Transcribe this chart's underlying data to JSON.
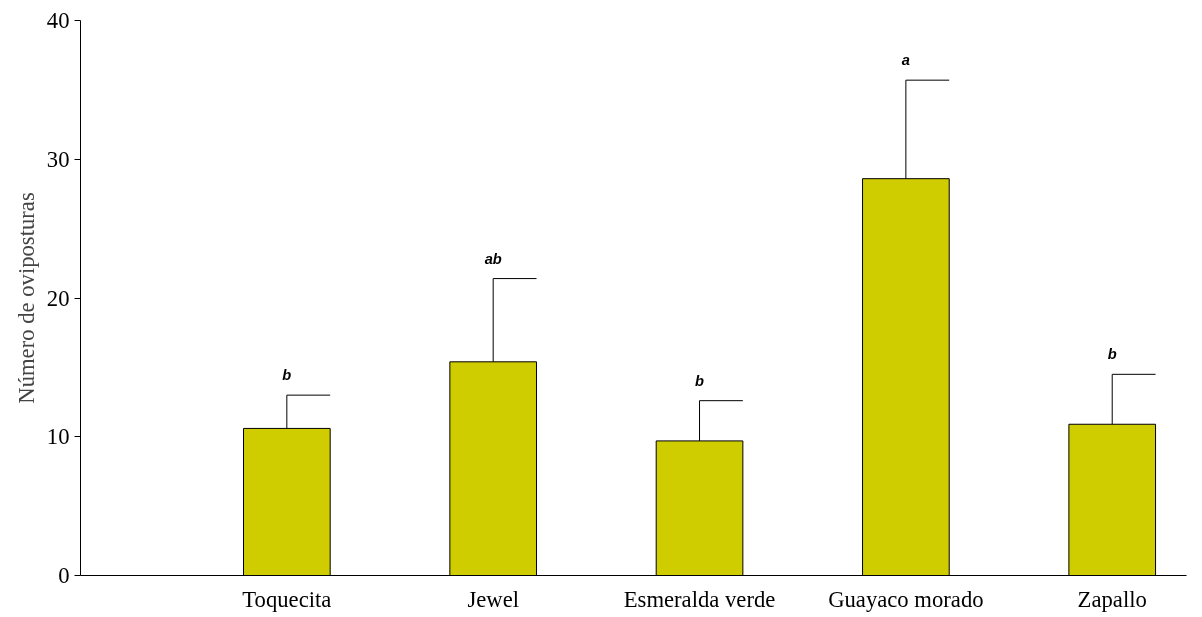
{
  "chart_data": {
    "type": "bar",
    "ylabel": "Número de oviposturas",
    "categories": [
      "Toquecita",
      "Jewel",
      "Esmeralda verde",
      "Guayaco morado",
      "Zapallo"
    ],
    "values": [
      10.6,
      15.4,
      9.7,
      28.6,
      10.9
    ],
    "errors": [
      [
        10.6,
        13.0
      ],
      [
        15.4,
        21.4
      ],
      [
        9.7,
        12.6
      ],
      [
        28.6,
        35.7
      ],
      [
        10.9,
        14.5
      ]
    ],
    "color": "#cfcc00",
    "ylim": [
      0,
      40
    ],
    "yticks": [
      0,
      10,
      20,
      30,
      40
    ],
    "grid": false,
    "annotations": [
      "b",
      "ab",
      "b",
      "a",
      "b"
    ]
  }
}
